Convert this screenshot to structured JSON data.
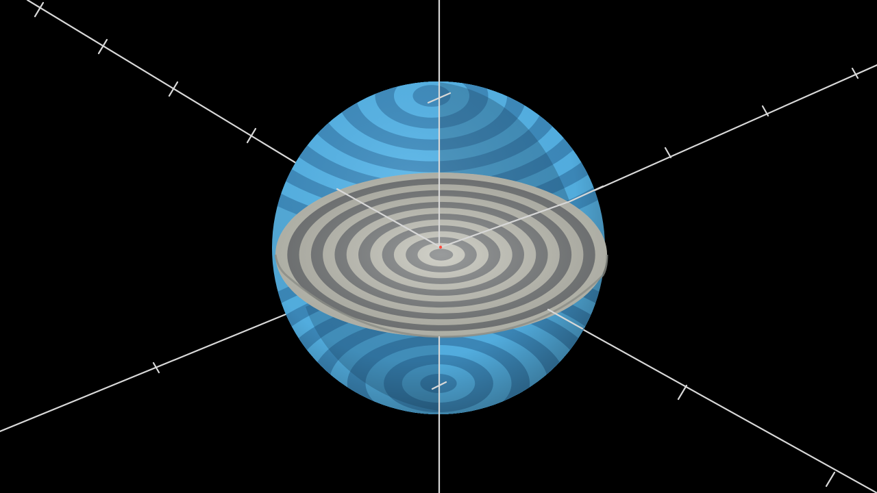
{
  "scene": {
    "background": "#000000",
    "axis_color": "#d8d8d8",
    "sphere_color_light": "#5bbcf0",
    "sphere_color_dark": "#3a86b8",
    "disk_color_light": "#c9c9bd",
    "disk_color_dark": "#6f7274",
    "origin_marker_color": "#ff4a3d",
    "disk_ring_count": 14,
    "sphere_band_count": 13,
    "axes": [
      "x",
      "y",
      "z"
    ]
  }
}
